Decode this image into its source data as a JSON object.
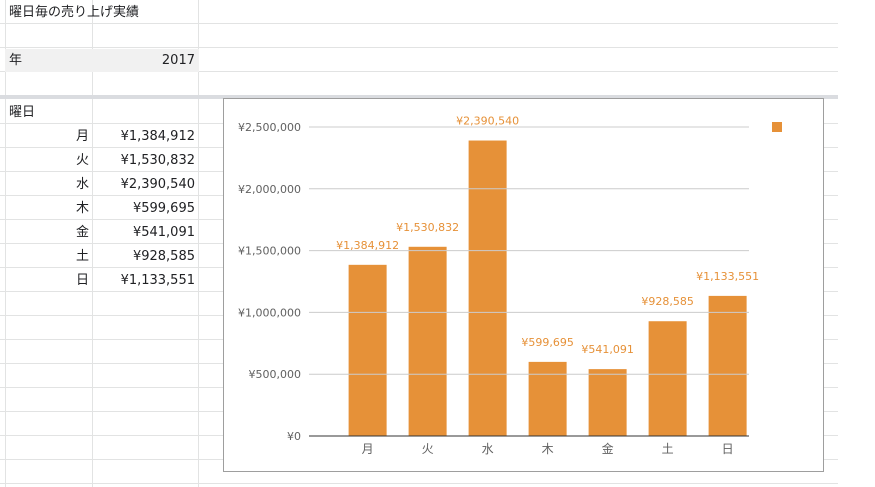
{
  "sheet": {
    "title": "曜日毎の売り上げ実績",
    "year_label": "年",
    "year_value": "2017",
    "section_label": "曜日",
    "rows": [
      {
        "day": "月",
        "amount": "¥1,384,912"
      },
      {
        "day": "火",
        "amount": "¥1,530,832"
      },
      {
        "day": "水",
        "amount": "¥2,390,540"
      },
      {
        "day": "木",
        "amount": "¥599,695"
      },
      {
        "day": "金",
        "amount": "¥541,091"
      },
      {
        "day": "土",
        "amount": "¥928,585"
      },
      {
        "day": "日",
        "amount": "¥1,133,551"
      }
    ]
  },
  "colors": {
    "bar": "#e69138",
    "grid": "#cccccc"
  },
  "chart_data": {
    "type": "bar",
    "categories": [
      "月",
      "火",
      "水",
      "木",
      "金",
      "土",
      "日"
    ],
    "values": [
      1384912,
      1530832,
      2390540,
      599695,
      541091,
      928585,
      1133551
    ],
    "data_labels": [
      "¥1,384,912",
      "¥1,530,832",
      "¥2,390,540",
      "¥599,695",
      "¥541,091",
      "¥928,585",
      "¥1,133,551"
    ],
    "yticks": [
      0,
      500000,
      1000000,
      1500000,
      2000000,
      2500000
    ],
    "ytick_labels": [
      "¥0",
      "¥500,000",
      "¥1,000,000",
      "¥1,500,000",
      "¥2,000,000",
      "¥2,500,000"
    ],
    "ylim": [
      0,
      2500000
    ],
    "grid": true,
    "legend": "top-right",
    "title": "",
    "xlabel": "",
    "ylabel": ""
  }
}
